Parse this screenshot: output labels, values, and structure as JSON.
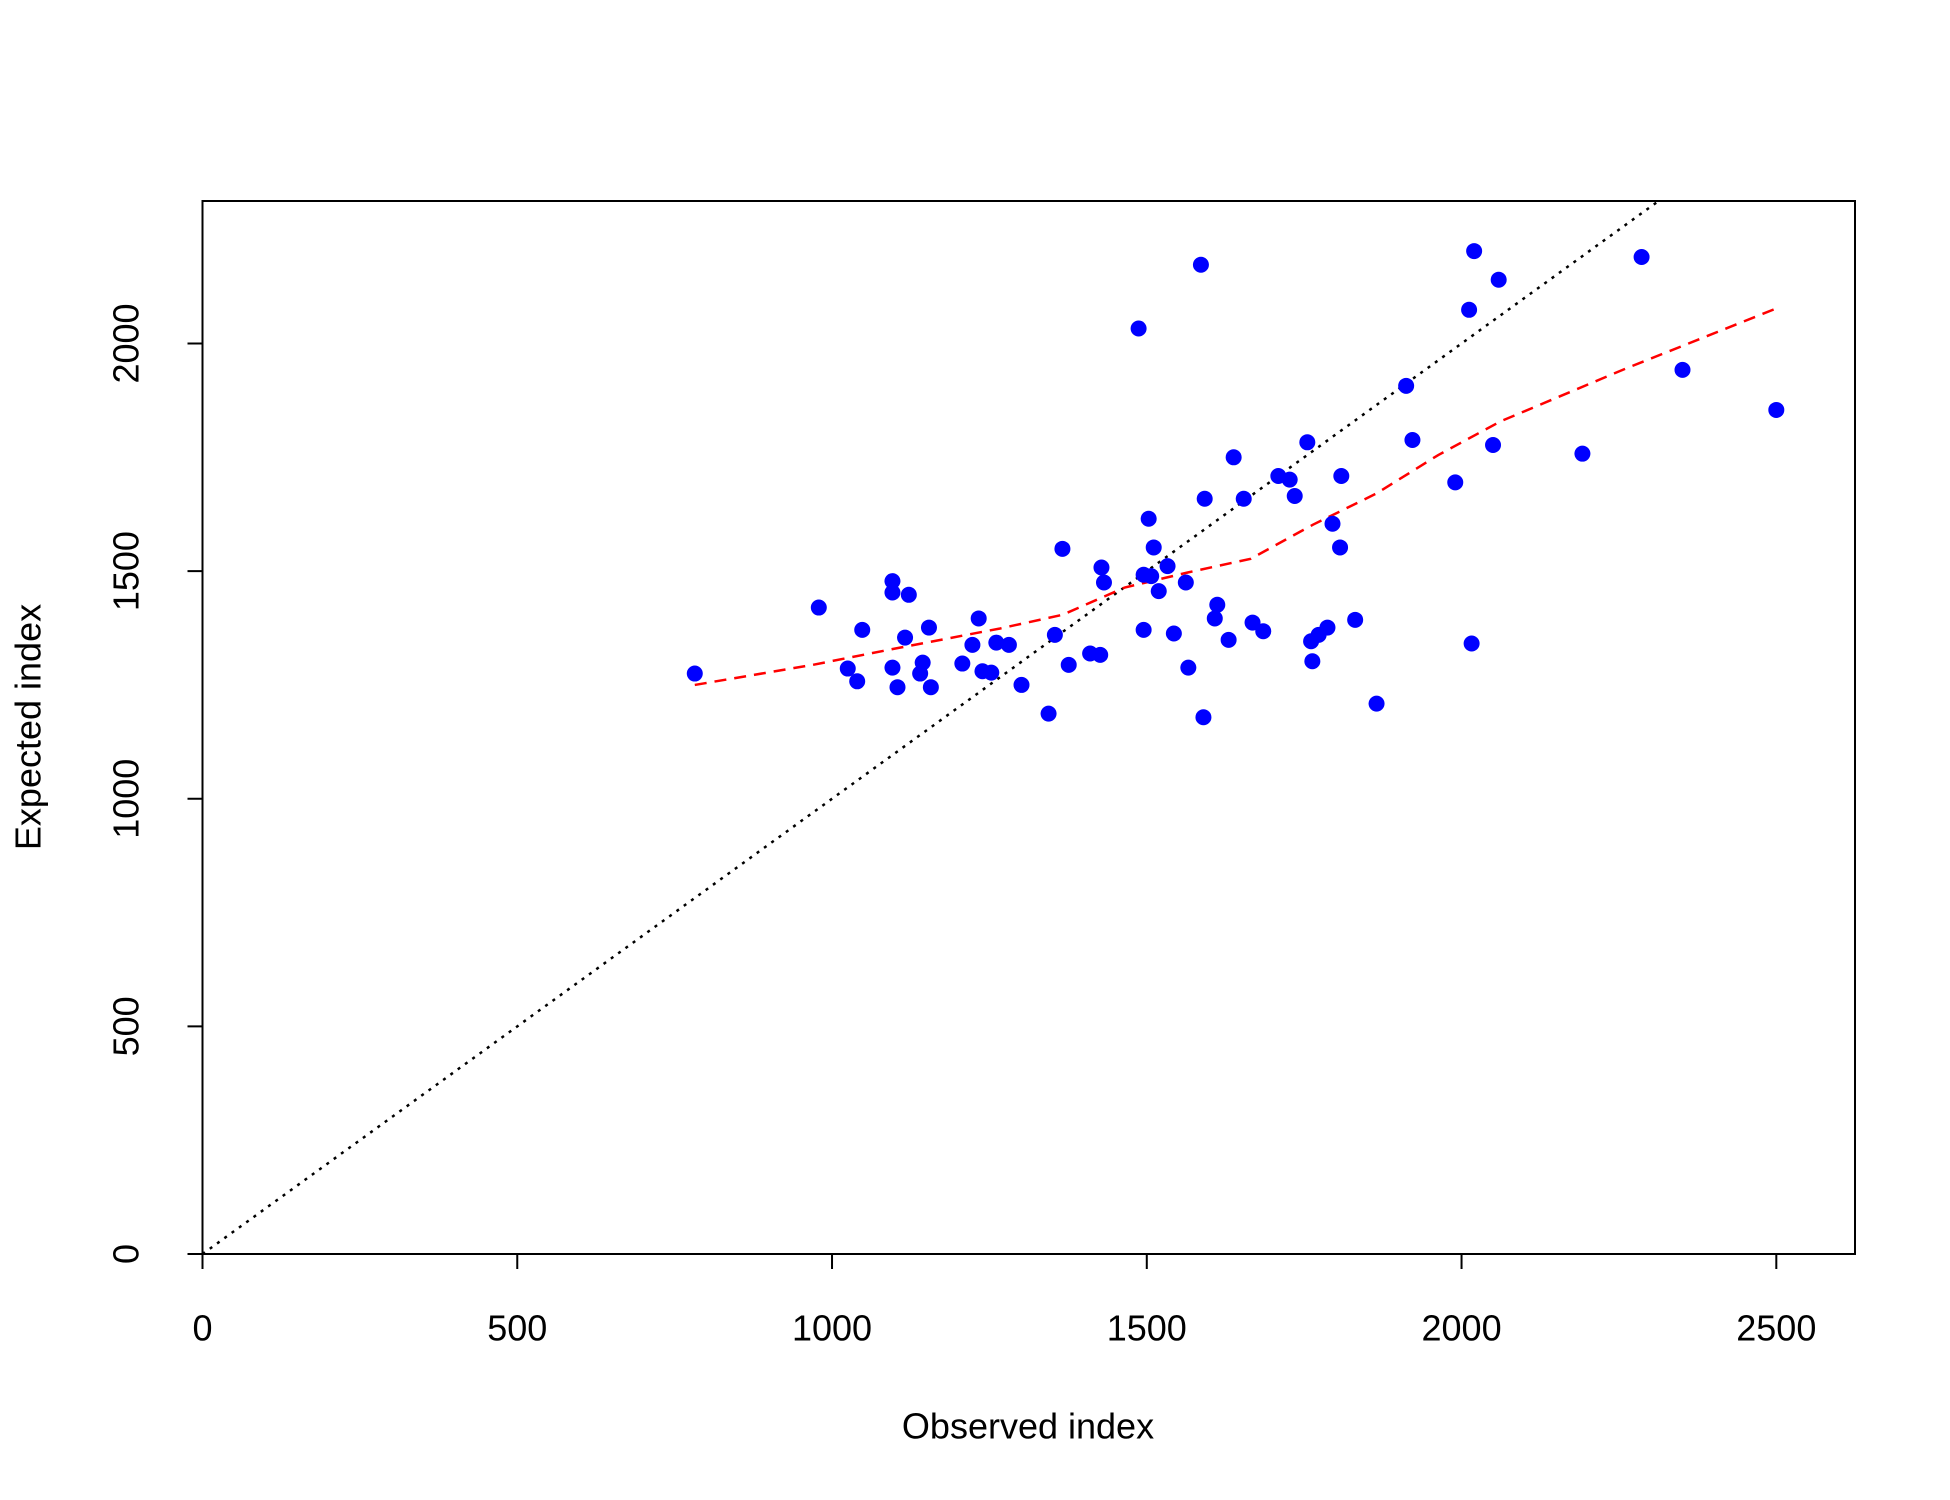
{
  "chart_data": {
    "type": "scatter",
    "xlabel": "Observed index",
    "ylabel": "Expected index",
    "xlim": [
      0,
      2625
    ],
    "ylim": [
      0,
      2313
    ],
    "xticks": [
      0,
      500,
      1000,
      1500,
      2000,
      2500
    ],
    "yticks": [
      0,
      500,
      1000,
      1500,
      2000
    ],
    "grid": false,
    "color": "#0000ff",
    "x": [
      782,
      979,
      1025,
      1040,
      1048,
      1096,
      1096,
      1096,
      1104,
      1122,
      1116,
      1140,
      1144,
      1154,
      1157,
      1207,
      1223,
      1233,
      1239,
      1253,
      1261,
      1281,
      1301,
      1344,
      1354,
      1366,
      1376,
      1410,
      1426,
      1428,
      1432,
      1487,
      1495,
      1495,
      1503,
      1507,
      1511,
      1519,
      1533,
      1543,
      1562,
      1566,
      1586,
      1590,
      1592,
      1608,
      1612,
      1630,
      1638,
      1654,
      1668,
      1685,
      1709,
      1727,
      1735,
      1755,
      1761,
      1763,
      1773,
      1787,
      1795,
      1807,
      1809,
      1831,
      1865,
      1912,
      1922,
      1990,
      2012,
      2016,
      2020,
      2050,
      2059,
      2192,
      2286,
      2351,
      2500
    ],
    "values": [
      1275,
      1420,
      1286,
      1258,
      1371,
      1478,
      1453,
      1288,
      1245,
      1448,
      1354,
      1275,
      1299,
      1376,
      1245,
      1297,
      1338,
      1396,
      1280,
      1277,
      1343,
      1338,
      1250,
      1187,
      1360,
      1549,
      1294,
      1319,
      1316,
      1508,
      1475,
      2033,
      1371,
      1492,
      1615,
      1489,
      1552,
      1456,
      1511,
      1363,
      1475,
      1288,
      2173,
      1179,
      1659,
      1396,
      1426,
      1349,
      1750,
      1659,
      1387,
      1368,
      1709,
      1701,
      1665,
      1783,
      1346,
      1302,
      1360,
      1376,
      1604,
      1552,
      1709,
      1393,
      1209,
      1907,
      1788,
      1695,
      2074,
      1341,
      2203,
      1777,
      2140,
      1758,
      2190,
      1942,
      1854
    ],
    "lines": [
      {
        "color": "#000000",
        "dash": "dotted",
        "x": [
          0,
          2313
        ],
        "values": [
          0,
          2313
        ]
      },
      {
        "color": "#ff0000",
        "dash": "dashed",
        "x": [
          782,
          969,
          1108,
          1267,
          1366,
          1465,
          1565,
          1665,
          1764,
          1864,
          1963,
          2062,
          2261,
          2500
        ],
        "values": [
          1250,
          1294,
          1332,
          1374,
          1404,
          1464,
          1497,
          1527,
          1602,
          1670,
          1755,
          1829,
          1945,
          2077
        ]
      }
    ]
  }
}
